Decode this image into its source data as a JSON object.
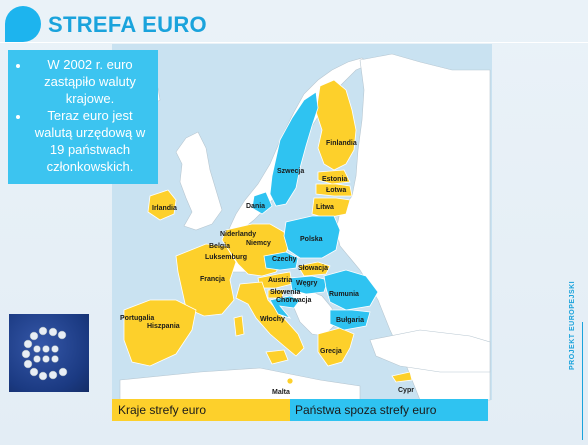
{
  "slide": {
    "title": "STREFA EURO",
    "bullets": [
      "W 2002 r. euro zastąpiło waluty krajowe.",
      "Teraz euro jest walutą urzędową w 19 państwach członkowskich."
    ],
    "side_text": "PROJEKT EUROPEJSKI"
  },
  "map": {
    "countries": {
      "finland": "Finlandia",
      "sweden": "Szwecja",
      "estonia": "Estonia",
      "latvia": "Łotwa",
      "lithuania": "Litwa",
      "denmark": "Dania",
      "ireland": "Irlandia",
      "netherlands": "Niderlandy",
      "belgium": "Belgia",
      "germany": "Niemcy",
      "luxembourg": "Luksemburg",
      "poland": "Polska",
      "czechia": "Czechy",
      "slovakia": "Słowacja",
      "france": "Francja",
      "austria": "Austria",
      "hungary": "Węgry",
      "slovenia": "Słowenia",
      "croatia": "Chorwacja",
      "romania": "Rumunia",
      "bulgaria": "Bułgaria",
      "portugal": "Portugalia",
      "spain": "Hiszpania",
      "italy": "Włochy",
      "greece": "Grecja",
      "malta": "Malta",
      "cyprus": "Cypr"
    },
    "colors": {
      "euro": "#fdd02b",
      "non_euro": "#2fc3f1",
      "other": "#ffffff"
    }
  },
  "legend": {
    "euro_label": "Kraje strefy euro",
    "non_euro_label": "Państwa spoza strefy euro"
  }
}
